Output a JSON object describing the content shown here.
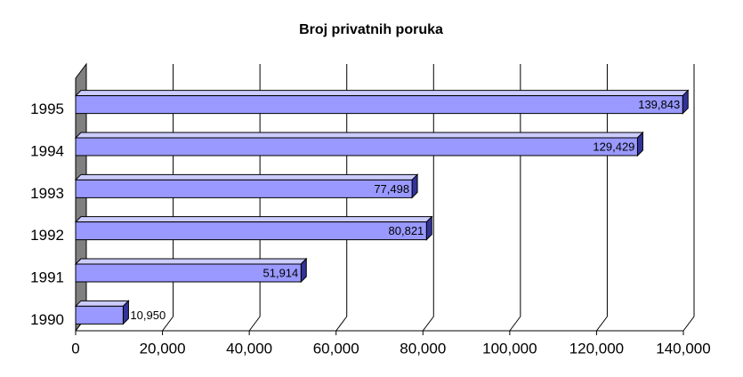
{
  "chart_data": {
    "type": "bar",
    "orientation": "horizontal",
    "title": "Broj privatnih poruka",
    "categories": [
      "1990",
      "1991",
      "1992",
      "1993",
      "1994",
      "1995"
    ],
    "values": [
      10950,
      51914,
      80821,
      77498,
      129429,
      139843
    ],
    "value_labels": [
      "10,950",
      "51,914",
      "80,821",
      "77,498",
      "129,429",
      "139,843"
    ],
    "color": "#9999ff",
    "xlim": [
      0,
      140000
    ],
    "xticks": [
      0,
      {
        "value": 20000,
        "label": "20,000"
      },
      {
        "value": 40000,
        "label": "40,000"
      },
      {
        "value": 60000,
        "label": "60,000"
      },
      {
        "value": 80000,
        "label": "80,000"
      },
      {
        "value": 100000,
        "label": "100,000"
      },
      {
        "value": 120000,
        "label": "120,000"
      },
      {
        "value": 140000,
        "label": "140,000"
      }
    ],
    "grid": true
  }
}
